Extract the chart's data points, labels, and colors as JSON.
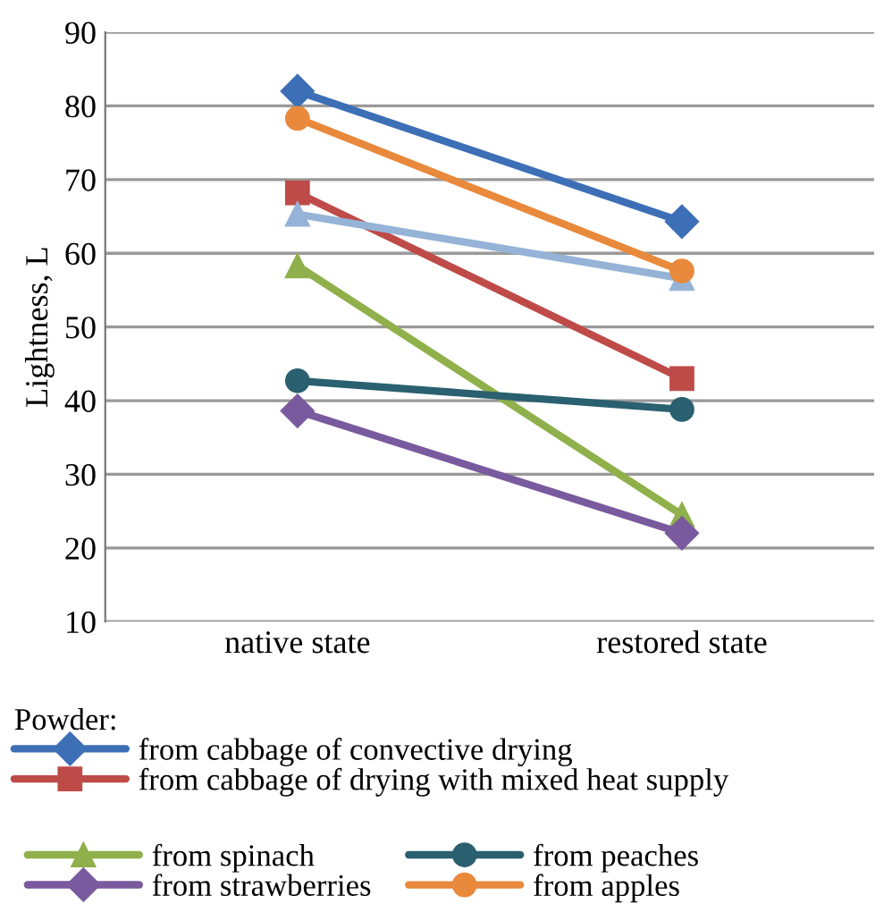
{
  "chart_data": {
    "type": "line",
    "ylabel": "Lightness, L",
    "legend_title": "Powder:",
    "categories": [
      "native state",
      "restored state"
    ],
    "series": [
      {
        "name": "from cabbage of convective drying",
        "color": "#3d6fb6",
        "marker": "diamond",
        "values": [
          82,
          64.3
        ]
      },
      {
        "name": "from cabbage of drying with mixed heat supply",
        "color": "#be4b48",
        "marker": "square",
        "values": [
          68.2,
          43
        ]
      },
      {
        "name": "from spinach",
        "color": "#8fb04a",
        "marker": "triangle",
        "values": [
          58.3,
          24.5
        ]
      },
      {
        "name": "from peaches",
        "color": "#2a6070",
        "marker": "circle",
        "values": [
          42.7,
          38.8
        ]
      },
      {
        "name": "from strawberries",
        "color": "#7a5a9e",
        "marker": "diamond",
        "values": [
          38.6,
          22
        ]
      },
      {
        "color": "#95b3d7",
        "marker": "triangle",
        "values": [
          65.3,
          56.6
        ]
      },
      {
        "name": "from apples",
        "color": "#e8893c",
        "marker": "circle",
        "values": [
          78.3,
          57.6
        ]
      }
    ],
    "ylim": [
      10,
      90
    ],
    "yticks": [
      10,
      20,
      30,
      40,
      50,
      60,
      70,
      80,
      90
    ],
    "grid": "y",
    "legend": "bottom"
  }
}
